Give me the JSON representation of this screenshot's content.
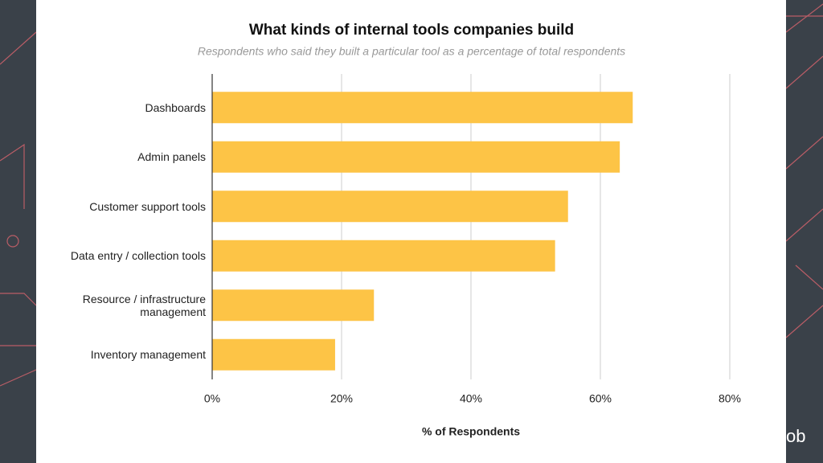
{
  "chart_data": {
    "type": "bar",
    "orientation": "horizontal",
    "title": "What kinds of internal tools companies build",
    "subtitle": "Respondents who said they built a particular tool as a percentage of total respondents",
    "x_label": "% of Respondents",
    "categories": [
      "Dashboards",
      "Admin panels",
      "Customer support tools",
      "Data entry / collection tools",
      "Resource / infrastructure management",
      "Inventory management"
    ],
    "values": [
      65,
      63,
      55,
      53,
      25,
      19
    ],
    "color": "#fdc446",
    "xlim": [
      0,
      80
    ],
    "xticks": [
      {
        "value": 0,
        "label": "0%"
      },
      {
        "value": 20,
        "label": "20%"
      },
      {
        "value": 40,
        "label": "40%"
      },
      {
        "value": 60,
        "label": "60%"
      },
      {
        "value": 80,
        "label": "80%"
      }
    ],
    "grid": true
  },
  "footer": {
    "logo": "ob"
  }
}
